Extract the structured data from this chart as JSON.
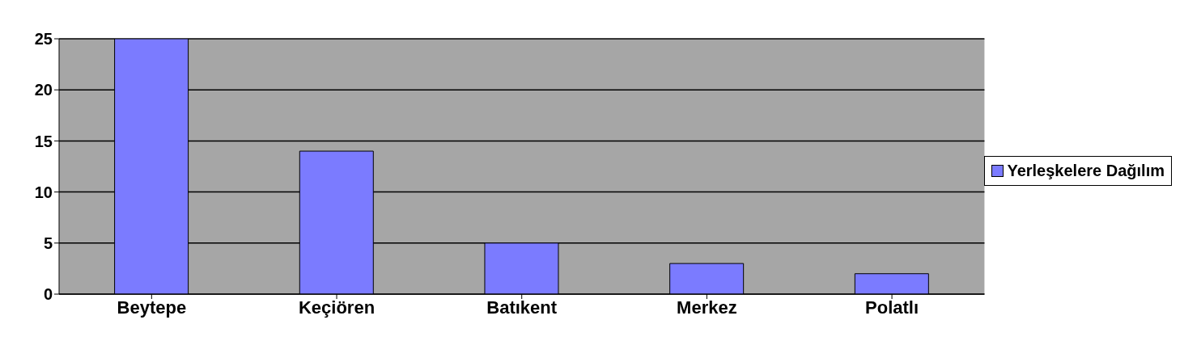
{
  "chart_data": {
    "type": "bar",
    "categories": [
      "Beytepe",
      "Keçiören",
      "Batıkent",
      "Merkez",
      "Polatlı"
    ],
    "series": [
      {
        "name": "Yerleşkelere Dağılım",
        "color": "#7b7bff",
        "values": [
          25,
          14,
          5,
          3,
          2
        ]
      }
    ],
    "ylim": [
      0,
      25
    ],
    "yticks": [
      0,
      5,
      10,
      15,
      20,
      25
    ],
    "grid": "y",
    "legend": "right"
  }
}
